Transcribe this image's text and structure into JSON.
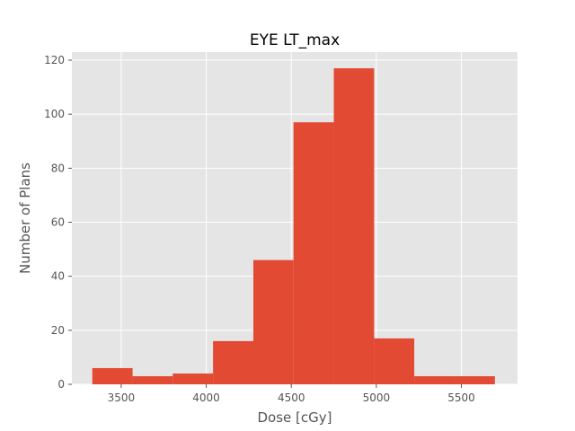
{
  "chart_data": {
    "type": "bar",
    "title": "EYE LT_max",
    "xlabel": "Dose [cGy]",
    "ylabel": "Number of Plans",
    "xlim": [
      3210,
      5830
    ],
    "ylim": [
      0,
      123
    ],
    "xticks": [
      3500,
      4000,
      4500,
      5000,
      5500
    ],
    "yticks": [
      0,
      20,
      40,
      60,
      80,
      100,
      120
    ],
    "bin_edges": [
      3330,
      3567,
      3803,
      4040,
      4277,
      4513,
      4750,
      4987,
      5223,
      5460,
      5697
    ],
    "counts": [
      6,
      3,
      4,
      16,
      46,
      97,
      117,
      17,
      3,
      3
    ],
    "grid": true,
    "colors": {
      "bar": "#E24A33",
      "axes_background": "#E5E5E5",
      "grid": "#FFFFFF",
      "tick_text": "#555555",
      "title_text": "#000000"
    }
  }
}
